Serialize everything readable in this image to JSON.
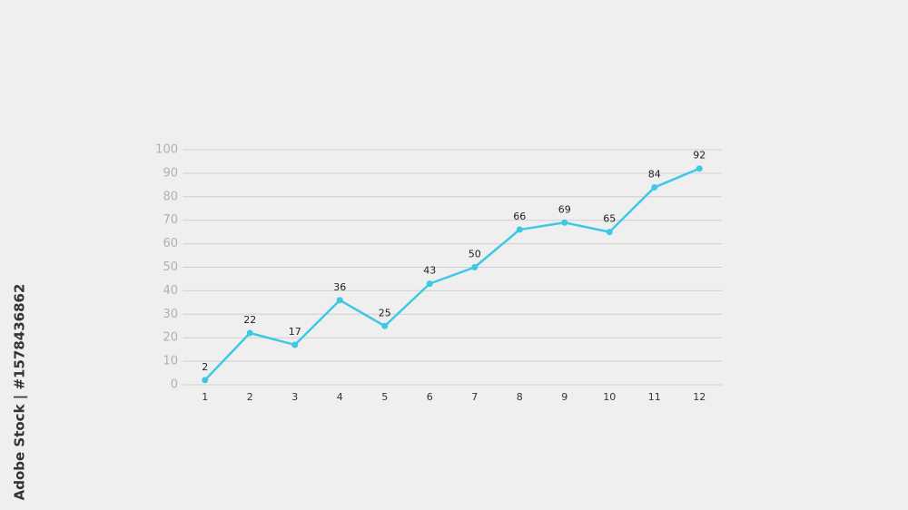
{
  "chart_data": {
    "type": "line",
    "x": [
      1,
      2,
      3,
      4,
      5,
      6,
      7,
      8,
      9,
      10,
      11,
      12
    ],
    "series": [
      {
        "color": "#3ec8e4",
        "values": [
          2,
          22,
          17,
          36,
          25,
          43,
          50,
          66,
          69,
          65,
          84,
          92
        ]
      }
    ],
    "xlim": [
      0.5,
      12.5
    ],
    "xticks": [
      1,
      2,
      3,
      4,
      5,
      6,
      7,
      8,
      9,
      10,
      11,
      12
    ],
    "ylim": [
      0,
      100
    ],
    "yticks": [
      0,
      10,
      20,
      30,
      40,
      50,
      60,
      70,
      80,
      90,
      100
    ],
    "grid": true
  },
  "watermark": "Adobe Stock | #1578436862"
}
